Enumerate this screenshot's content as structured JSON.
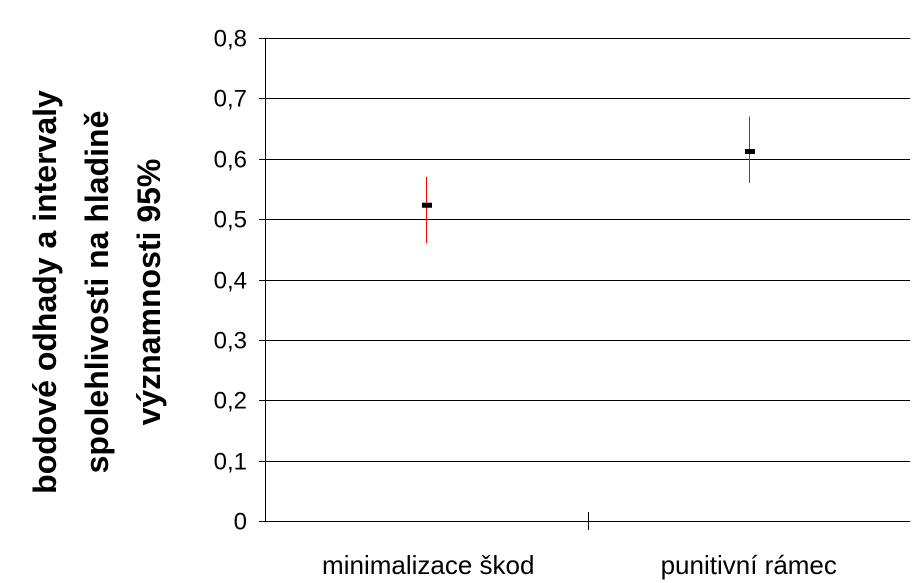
{
  "chart_data": {
    "type": "scatter",
    "categories": [
      "minimalizace škod",
      "punitivní rámec"
    ],
    "series": [
      {
        "values": [
          0.523,
          0.612
        ],
        "ci_lower": [
          0.46,
          0.56
        ],
        "ci_upper": [
          0.57,
          0.67
        ]
      }
    ],
    "ylabel_lines": [
      "bodové odhady a intervaly",
      "spolehlivosti na hladině",
      "významnosti 95%"
    ],
    "ylim": [
      0,
      0.8
    ],
    "yticks": [
      "0",
      "0,1",
      "0,2",
      "0,3",
      "0,4",
      "0,5",
      "0,6",
      "0,7",
      "0,8"
    ],
    "grid": true,
    "colors": {
      "point": "#000000",
      "interval": "#ff0000",
      "grid": "#000000"
    }
  }
}
